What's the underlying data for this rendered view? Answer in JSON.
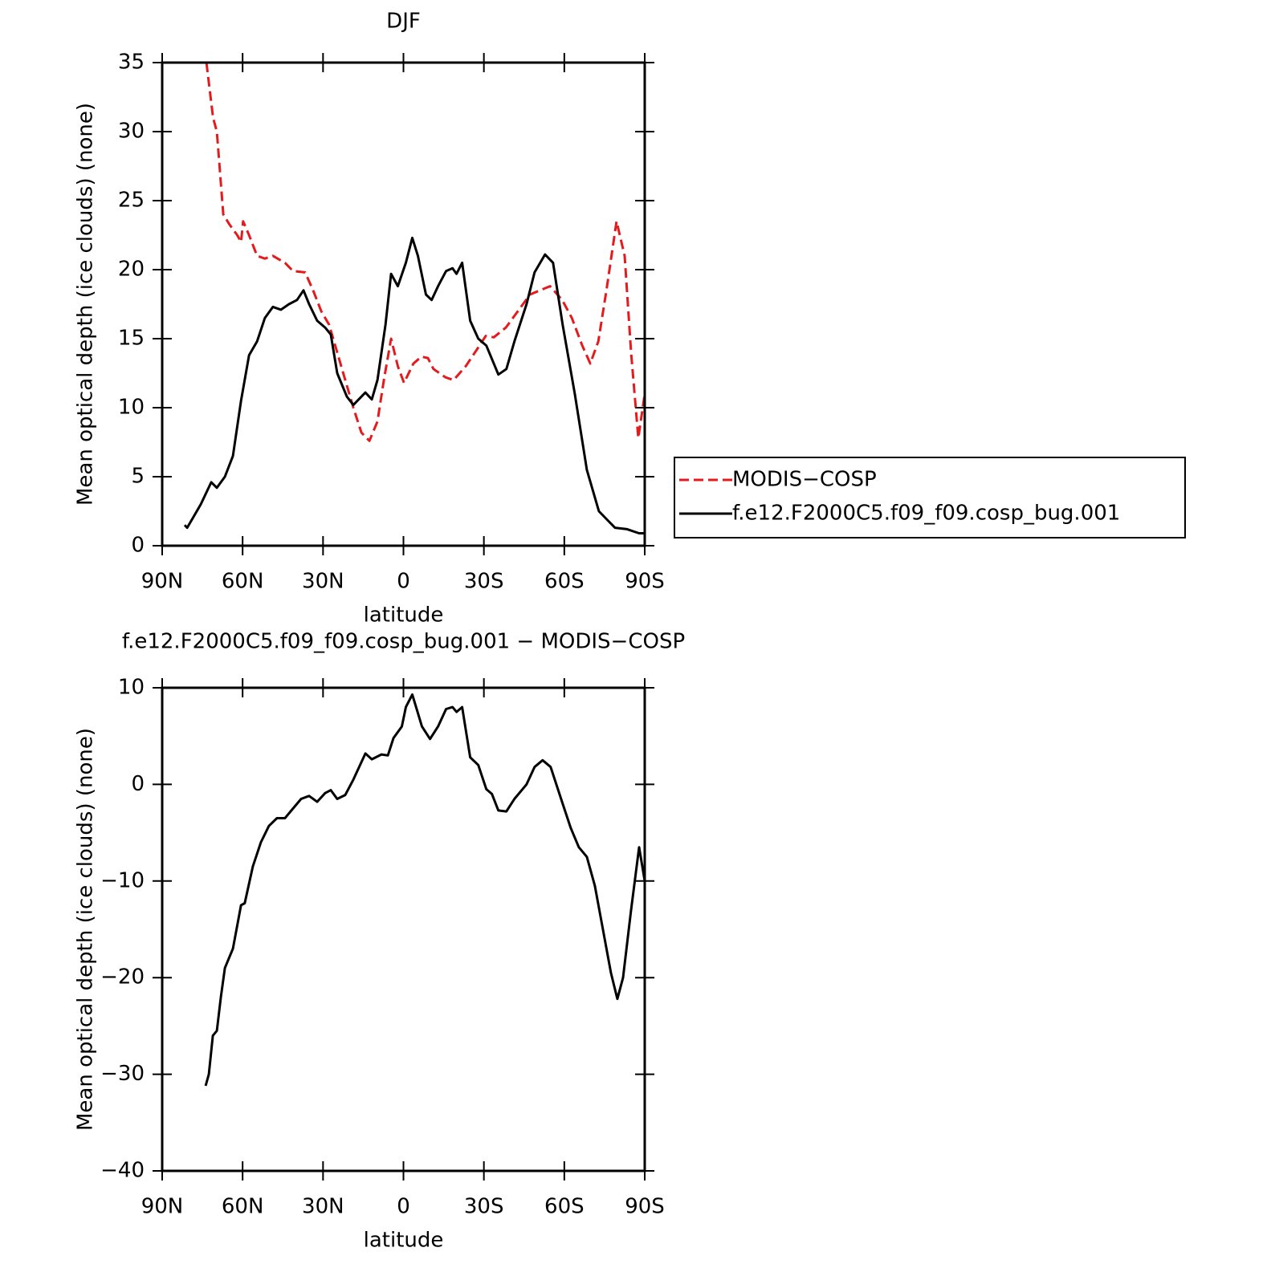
{
  "chart_data": [
    {
      "type": "line",
      "title": "DJF",
      "xlabel": "latitude",
      "ylabel": "Mean optical depth (ice clouds) (none)",
      "xlim": [
        90,
        -90
      ],
      "xticks": [
        {
          "value": 90,
          "label": "90N"
        },
        {
          "value": 60,
          "label": "60N"
        },
        {
          "value": 30,
          "label": "30N"
        },
        0,
        {
          "value": -30,
          "label": "30S"
        },
        {
          "value": -60,
          "label": "60S"
        },
        {
          "value": -90,
          "label": "90S"
        }
      ],
      "ylim": [
        0,
        35
      ],
      "yticks": [
        0,
        5,
        10,
        15,
        20,
        25,
        30,
        35
      ],
      "legend": "outside-right",
      "series": [
        {
          "name": "MODIS−COSP",
          "color": "#e41a1c",
          "dash": true,
          "x": [
            73.5,
            71,
            69.6,
            67.2,
            65,
            62,
            60.6,
            59.8,
            57.6,
            54.6,
            51.7,
            48.7,
            44.2,
            41.2,
            36.7,
            33.7,
            30.7,
            27.7,
            24.7,
            21.7,
            18.7,
            15.7,
            12.7,
            9.7,
            7.3,
            4.6,
            2.1,
            -0.2,
            -3.7,
            -6.7,
            -9.1,
            -11.2,
            -15.7,
            -18.7,
            -23.2,
            -27.7,
            -30.7,
            -33.7,
            -38.2,
            -42.7,
            -47.2,
            -54.7,
            -59.2,
            -62.8,
            -66.7,
            -69.7,
            -72.7,
            -75.7,
            -79.5,
            -82.5,
            -84.9,
            -87.6,
            -90
          ],
          "values": [
            35,
            31,
            30,
            24,
            23.3,
            22.5,
            22,
            23.5,
            22.5,
            21,
            20.8,
            21,
            20.5,
            19.9,
            19.8,
            18.5,
            17,
            16,
            14,
            12,
            10,
            8.2,
            7.6,
            9,
            12,
            15,
            13,
            11.8,
            13.2,
            13.7,
            13.6,
            12.8,
            12.2,
            12,
            13,
            14.3,
            15.2,
            15.1,
            15.8,
            17,
            18.2,
            18.8,
            17.8,
            16.5,
            14.5,
            13.2,
            14.8,
            18.5,
            23.5,
            21,
            14,
            7.8,
            11
          ]
        },
        {
          "name": "f.e12.F2000C5.f09_f09.cosp_bug.001",
          "color": "#000000",
          "dash": false,
          "x": [
            81.6,
            80.7,
            78.6,
            75.6,
            71.7,
            69.6,
            66.6,
            63.6,
            60.6,
            57.6,
            54.6,
            51.7,
            48.7,
            45.7,
            42.7,
            39.7,
            37.3,
            35.2,
            32.2,
            29.2,
            27.1,
            24.7,
            21.1,
            18.7,
            14.2,
            11.8,
            9.7,
            6.7,
            4.6,
            2.1,
            -0.9,
            -3.3,
            -5.4,
            -8.4,
            -10.5,
            -12.9,
            -15.9,
            -18.3,
            -19.8,
            -21.9,
            -24.9,
            -27.9,
            -30.9,
            -35.4,
            -38.4,
            -41.4,
            -45.9,
            -48.9,
            -52.8,
            -55.8,
            -59.4,
            -63.9,
            -68.4,
            -72.9,
            -78.9,
            -83.4,
            -87.9,
            -90
          ],
          "values": [
            1.5,
            1.3,
            2,
            3,
            4.6,
            4.2,
            5,
            6.5,
            10.5,
            13.8,
            14.8,
            16.5,
            17.3,
            17.1,
            17.5,
            17.8,
            18.5,
            17.5,
            16.3,
            15.8,
            15.3,
            12.5,
            10.8,
            10.2,
            11.1,
            10.6,
            12,
            16,
            19.7,
            18.8,
            20.5,
            22.3,
            21,
            18.2,
            17.8,
            18.8,
            19.9,
            20.1,
            19.7,
            20.5,
            16.3,
            15,
            14.5,
            12.4,
            12.8,
            14.8,
            17.5,
            19.8,
            21.1,
            20.5,
            16,
            11,
            5.5,
            2.5,
            1.3,
            1.2,
            0.9,
            0.9
          ]
        }
      ]
    },
    {
      "type": "line",
      "title": "f.e12.F2000C5.f09_f09.cosp_bug.001 − MODIS−COSP",
      "xlabel": "latitude",
      "ylabel": "Mean optical depth (ice clouds) (none)",
      "xlim": [
        90,
        -90
      ],
      "xticks": [
        {
          "value": 90,
          "label": "90N"
        },
        {
          "value": 60,
          "label": "60N"
        },
        {
          "value": 30,
          "label": "30N"
        },
        0,
        {
          "value": -30,
          "label": "30S"
        },
        {
          "value": -60,
          "label": "60S"
        },
        {
          "value": -90,
          "label": "90S"
        }
      ],
      "ylim": [
        -40,
        10
      ],
      "yticks": [
        {
          "value": -40,
          "label": "−40"
        },
        {
          "value": -30,
          "label": "−30"
        },
        {
          "value": -20,
          "label": "−20"
        },
        {
          "value": -10,
          "label": "−10"
        },
        0,
        10
      ],
      "series": [
        {
          "color": "#000000",
          "dash": false,
          "x": [
            73.8,
            72.6,
            71.1,
            69.6,
            68.1,
            66.6,
            63.6,
            60.6,
            59.2,
            56.2,
            53.2,
            50.2,
            47.2,
            44.2,
            41.2,
            38.2,
            35.2,
            32.2,
            29.2,
            27.1,
            24.7,
            21.7,
            18.7,
            14.2,
            11.8,
            8.2,
            5.8,
            3.7,
            0.6,
            -0.9,
            -3.3,
            -6.9,
            -9.9,
            -12.9,
            -15.9,
            -18.3,
            -19.8,
            -21.9,
            -24.9,
            -27.9,
            -30.9,
            -33,
            -35.4,
            -38.4,
            -41.4,
            -45.9,
            -48.9,
            -51.9,
            -54.9,
            -59.4,
            -62.4,
            -65.4,
            -68.4,
            -71.4,
            -74.4,
            -77.4,
            -79.8,
            -81.9,
            -84.9,
            -87.9,
            -90
          ],
          "values": [
            -31.2,
            -30,
            -26,
            -25.5,
            -22,
            -19,
            -17,
            -12.5,
            -12.3,
            -8.5,
            -6,
            -4.3,
            -3.5,
            -3.5,
            -2.5,
            -1.5,
            -1.2,
            -1.8,
            -0.9,
            -0.6,
            -1.5,
            -1.1,
            0.5,
            3.2,
            2.6,
            3.1,
            3,
            4.8,
            6,
            8,
            9.3,
            6,
            4.7,
            6,
            7.8,
            8,
            7.5,
            8,
            2.8,
            2,
            -0.5,
            -1,
            -2.7,
            -2.8,
            -1.5,
            0,
            1.8,
            2.5,
            1.8,
            -2,
            -4.5,
            -6.5,
            -7.5,
            -10.5,
            -15,
            -19.5,
            -22.2,
            -20,
            -13,
            -6.5,
            -10
          ]
        }
      ]
    }
  ]
}
